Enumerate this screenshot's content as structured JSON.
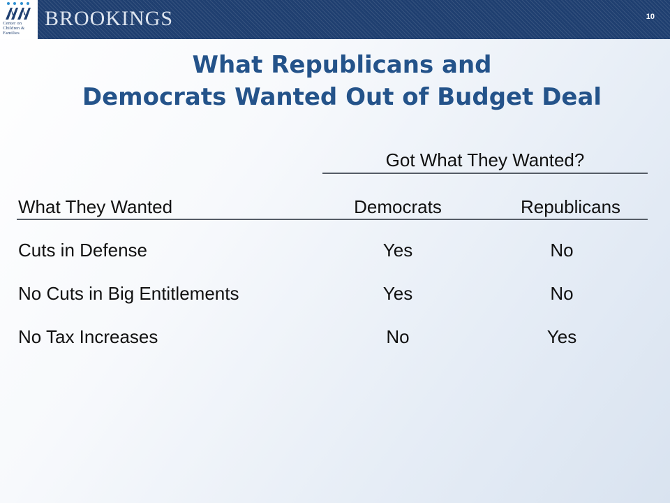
{
  "header": {
    "logo_text": [
      "Center on",
      "Children &",
      "Families"
    ],
    "brand": "BROOKINGS",
    "slide_number": "10"
  },
  "title": {
    "line1": "What Republicans and",
    "line2": "Democrats Wanted Out of Budget Deal"
  },
  "table": {
    "group_header": "Got What They Wanted?",
    "columns": [
      "What They Wanted",
      "Democrats",
      "Republicans"
    ],
    "rows": [
      {
        "item": "Cuts in Defense",
        "democrats": "Yes",
        "republicans": "No"
      },
      {
        "item": "No Cuts in Big Entitlements",
        "democrats": "Yes",
        "republicans": "No"
      },
      {
        "item": "No Tax Increases",
        "democrats": "No",
        "republicans": "Yes"
      }
    ]
  },
  "colors": {
    "banner": "#1f3f70",
    "title": "#24538a"
  }
}
